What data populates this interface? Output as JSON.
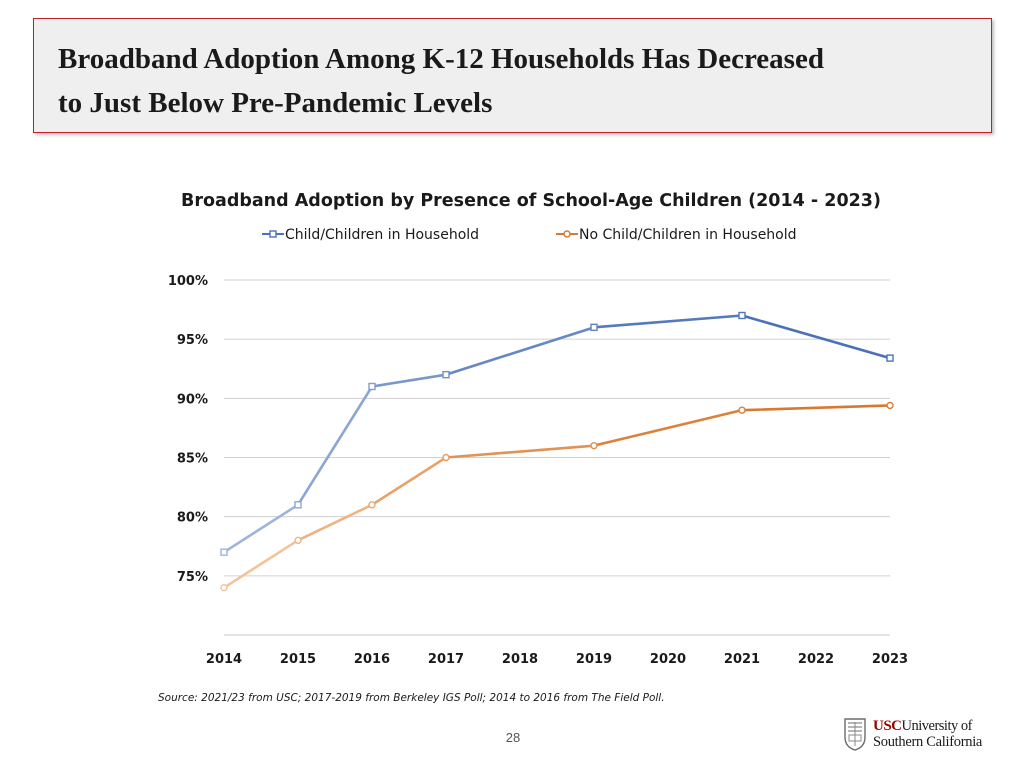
{
  "slide": {
    "title_line1": "Broadband Adoption Among K-12 Households Has Decreased",
    "title_line2": "to Just Below Pre-Pandemic Levels",
    "source": "Source: 2021/23 from USC; 2017-2019 from Berkeley IGS Poll; 2014 to 2016 from The Field Poll.",
    "page_number": "28",
    "logo": {
      "usc": "USC",
      "university_of": "University of",
      "southern_california": "Southern California"
    }
  },
  "colors": {
    "series_blue": "#4a72b8",
    "series_blue_light": "#9db4dc",
    "series_orange": "#d9782f",
    "series_orange_light": "#f3c399",
    "title_border": "#c0202a",
    "usc_cardinal": "#990000"
  },
  "chart_data": {
    "type": "line",
    "title": "Broadband Adoption by Presence of School-Age Children (2014 - 2023)",
    "x": [
      "2014",
      "2015",
      "2016",
      "2017",
      "2018",
      "2019",
      "2020",
      "2021",
      "2022",
      "2023"
    ],
    "ylim": [
      70,
      100
    ],
    "yticks": [
      75,
      80,
      85,
      90,
      95,
      100
    ],
    "ytick_labels": [
      "75%",
      "80%",
      "85%",
      "90%",
      "95%",
      "100%"
    ],
    "grid": true,
    "legend": "top-center",
    "series": [
      {
        "name": "Child/Children in Household",
        "marker": "square",
        "points": [
          {
            "x": "2014",
            "y": 77
          },
          {
            "x": "2015",
            "y": 81
          },
          {
            "x": "2016",
            "y": 91
          },
          {
            "x": "2017",
            "y": 92
          },
          {
            "x": "2019",
            "y": 96
          },
          {
            "x": "2021",
            "y": 97
          },
          {
            "x": "2023",
            "y": 93.4
          }
        ]
      },
      {
        "name": "No Child/Children in Household",
        "marker": "circle",
        "points": [
          {
            "x": "2014",
            "y": 74
          },
          {
            "x": "2015",
            "y": 78
          },
          {
            "x": "2016",
            "y": 81
          },
          {
            "x": "2017",
            "y": 85
          },
          {
            "x": "2019",
            "y": 86
          },
          {
            "x": "2021",
            "y": 89
          },
          {
            "x": "2023",
            "y": 89.4
          }
        ]
      }
    ]
  }
}
